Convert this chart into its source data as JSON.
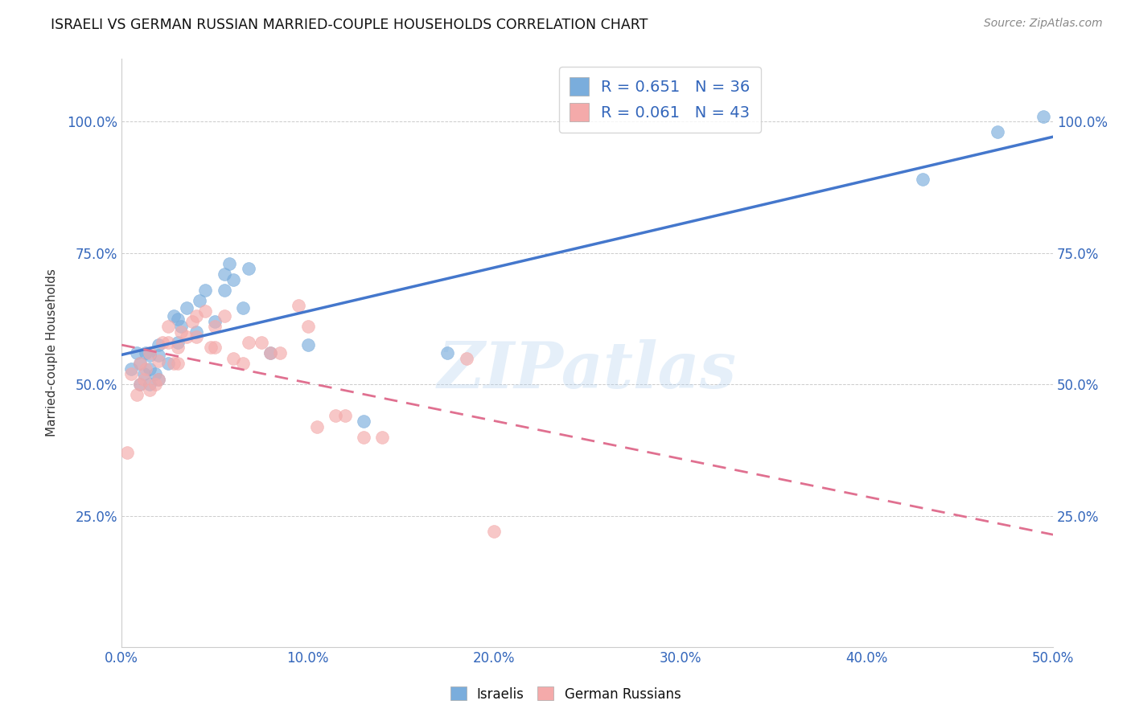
{
  "title": "ISRAELI VS GERMAN RUSSIAN MARRIED-COUPLE HOUSEHOLDS CORRELATION CHART",
  "source": "Source: ZipAtlas.com",
  "ylabel_label": "Married-couple Households",
  "x_ticks": [
    0.0,
    0.1,
    0.2,
    0.3,
    0.4,
    0.5
  ],
  "x_tick_labels": [
    "0.0%",
    "10.0%",
    "20.0%",
    "30.0%",
    "40.0%",
    "50.0%"
  ],
  "y_ticks": [
    0.0,
    0.25,
    0.5,
    0.75,
    1.0
  ],
  "y_tick_labels": [
    "",
    "25.0%",
    "50.0%",
    "75.0%",
    "100.0%"
  ],
  "xlim": [
    0.0,
    0.5
  ],
  "ylim": [
    0.0,
    1.12
  ],
  "israelis_R": "0.651",
  "israelis_N": "36",
  "german_russians_R": "0.061",
  "german_russians_N": "43",
  "blue_color": "#7AADDC",
  "pink_color": "#F4AAAA",
  "trendline_blue": "#4477CC",
  "trendline_pink": "#E07090",
  "watermark": "ZIPatlas",
  "israelis_x": [
    0.005,
    0.008,
    0.01,
    0.01,
    0.012,
    0.013,
    0.015,
    0.015,
    0.015,
    0.018,
    0.02,
    0.02,
    0.02,
    0.025,
    0.028,
    0.03,
    0.03,
    0.032,
    0.035,
    0.04,
    0.042,
    0.045,
    0.05,
    0.055,
    0.055,
    0.058,
    0.06,
    0.065,
    0.068,
    0.08,
    0.1,
    0.13,
    0.175,
    0.43,
    0.47,
    0.495
  ],
  "israelis_y": [
    0.53,
    0.56,
    0.5,
    0.54,
    0.52,
    0.56,
    0.5,
    0.53,
    0.555,
    0.52,
    0.51,
    0.555,
    0.575,
    0.54,
    0.63,
    0.58,
    0.625,
    0.61,
    0.645,
    0.6,
    0.66,
    0.68,
    0.62,
    0.68,
    0.71,
    0.73,
    0.7,
    0.645,
    0.72,
    0.56,
    0.575,
    0.43,
    0.56,
    0.89,
    0.98,
    1.01
  ],
  "german_russians_x": [
    0.003,
    0.005,
    0.008,
    0.01,
    0.01,
    0.012,
    0.013,
    0.015,
    0.015,
    0.018,
    0.02,
    0.02,
    0.022,
    0.025,
    0.025,
    0.028,
    0.03,
    0.03,
    0.032,
    0.035,
    0.038,
    0.04,
    0.04,
    0.045,
    0.048,
    0.05,
    0.05,
    0.055,
    0.06,
    0.065,
    0.068,
    0.075,
    0.08,
    0.085,
    0.095,
    0.1,
    0.105,
    0.115,
    0.12,
    0.13,
    0.14,
    0.185,
    0.2
  ],
  "german_russians_y": [
    0.37,
    0.52,
    0.48,
    0.5,
    0.54,
    0.51,
    0.53,
    0.49,
    0.56,
    0.5,
    0.51,
    0.545,
    0.58,
    0.58,
    0.61,
    0.54,
    0.54,
    0.57,
    0.6,
    0.59,
    0.62,
    0.59,
    0.63,
    0.64,
    0.57,
    0.57,
    0.61,
    0.63,
    0.55,
    0.54,
    0.58,
    0.58,
    0.56,
    0.56,
    0.65,
    0.61,
    0.42,
    0.44,
    0.44,
    0.4,
    0.4,
    0.55,
    0.22
  ]
}
